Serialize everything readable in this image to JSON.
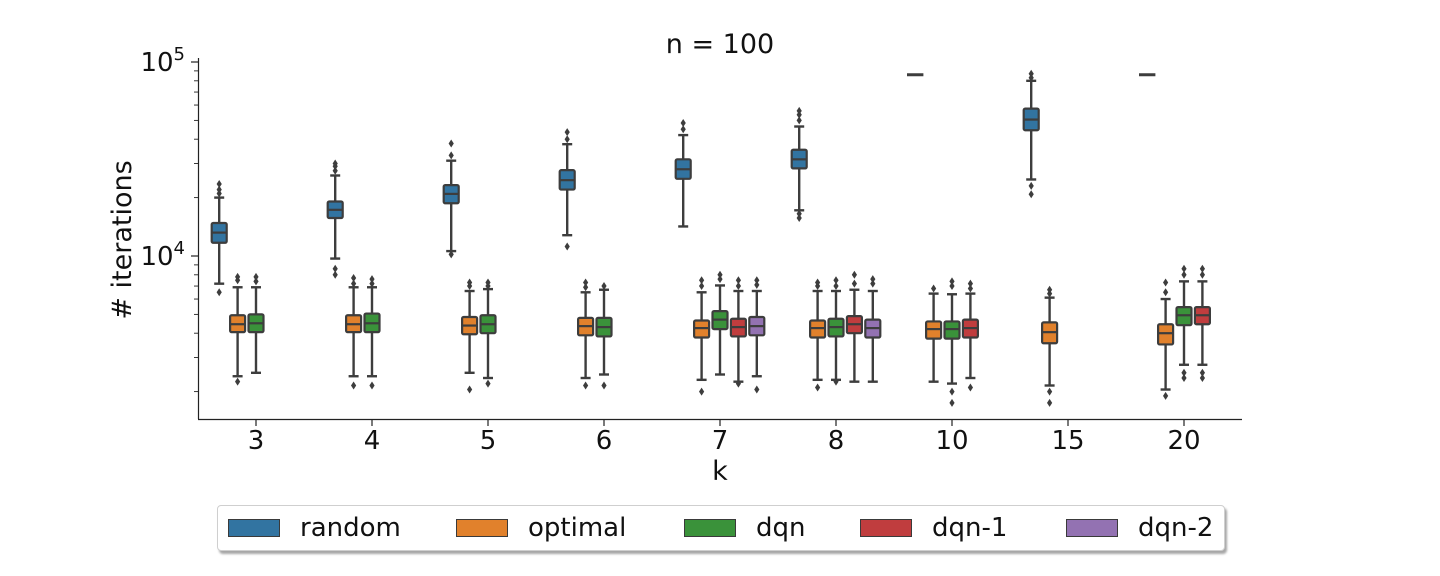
{
  "chart_data": {
    "type": "boxplot",
    "title": "n = 100",
    "xlabel": "k",
    "ylabel": "# iterations",
    "y_scale": "log",
    "y_ticks": [
      {
        "value": 10000,
        "label": "10^4"
      },
      {
        "value": 100000,
        "label": "10^5"
      }
    ],
    "categories": [
      "3",
      "4",
      "5",
      "6",
      "7",
      "8",
      "10",
      "15",
      "20"
    ],
    "legend_position": "bottom-center",
    "series": [
      {
        "name": "random",
        "color": "#3274a1",
        "boxes": {
          "3": {
            "q1": 11700,
            "median": 13200,
            "q3": 14800,
            "whislo": 7200,
            "whishi": 20000,
            "fliers": [
              6500,
              21000,
              22000,
              23500
            ]
          },
          "4": {
            "q1": 15700,
            "median": 17300,
            "q3": 19100,
            "whislo": 9700,
            "whishi": 26000,
            "fliers": [
              8000,
              8600,
              27500,
              29000,
              30000
            ]
          },
          "5": {
            "q1": 18700,
            "median": 20900,
            "q3": 23200,
            "whislo": 10600,
            "whishi": 31000,
            "fliers": [
              10200,
              33000,
              38000
            ]
          },
          "6": {
            "q1": 22000,
            "median": 24600,
            "q3": 27700,
            "whislo": 12800,
            "whishi": 37700,
            "fliers": [
              11200,
              40000,
              43500
            ]
          },
          "7": {
            "q1": 25000,
            "median": 28000,
            "q3": 31500,
            "whislo": 14200,
            "whishi": 42000,
            "fliers": [
              45000,
              48500
            ]
          },
          "8": {
            "q1": 28300,
            "median": 31500,
            "q3": 35300,
            "whislo": 17200,
            "whishi": 46500,
            "fliers": [
              15700,
              16500,
              50000,
              53500,
              56000
            ]
          },
          "10": {
            "q1": 86000,
            "median": 86000,
            "q3": 86000,
            "whislo": 86000,
            "whishi": 86000,
            "fliers": []
          },
          "15": {
            "q1": 44500,
            "median": 50500,
            "q3": 57500,
            "whislo": 24800,
            "whishi": 80000,
            "fliers": [
              20800,
              23000,
              83000,
              87000
            ]
          },
          "20": {
            "q1": 86000,
            "median": 86000,
            "q3": 86000,
            "whislo": 86000,
            "whishi": 86000,
            "fliers": []
          }
        }
      },
      {
        "name": "optimal",
        "color": "#e1812c",
        "boxes": {
          "3": {
            "q1": 4050,
            "median": 4450,
            "q3": 4950,
            "whislo": 2400,
            "whishi": 6900,
            "fliers": [
              2250,
              7500,
              7800
            ]
          },
          "4": {
            "q1": 4050,
            "median": 4450,
            "q3": 4950,
            "whislo": 2400,
            "whishi": 6900,
            "fliers": [
              2150,
              7200,
              7700
            ]
          },
          "5": {
            "q1": 3950,
            "median": 4380,
            "q3": 4850,
            "whislo": 2500,
            "whishi": 6600,
            "fliers": [
              2050,
              7000,
              7300
            ]
          },
          "6": {
            "q1": 3900,
            "median": 4350,
            "q3": 4800,
            "whislo": 2350,
            "whishi": 6500,
            "fliers": [
              2150,
              6900,
              7300
            ]
          },
          "7": {
            "q1": 3800,
            "median": 4250,
            "q3": 4650,
            "whislo": 2300,
            "whishi": 6500,
            "fliers": [
              2000,
              7000,
              7500
            ]
          },
          "8": {
            "q1": 3800,
            "median": 4250,
            "q3": 4650,
            "whislo": 2300,
            "whishi": 6600,
            "fliers": [
              2100,
              7000,
              7300
            ]
          },
          "10": {
            "q1": 3750,
            "median": 4200,
            "q3": 4600,
            "whislo": 2250,
            "whishi": 6400,
            "fliers": [
              6800
            ]
          },
          "15": {
            "q1": 3550,
            "median": 4050,
            "q3": 4550,
            "whislo": 2150,
            "whishi": 6100,
            "fliers": [
              1750,
              2000,
              6400,
              6700
            ]
          },
          "20": {
            "q1": 3500,
            "median": 4000,
            "q3": 4450,
            "whislo": 2050,
            "whishi": 6000,
            "fliers": [
              1900,
              6500,
              7300
            ]
          }
        }
      },
      {
        "name": "dqn",
        "color": "#3a923a",
        "boxes": {
          "3": {
            "q1": 4050,
            "median": 4500,
            "q3": 5000,
            "whislo": 2500,
            "whishi": 6900,
            "fliers": [
              7400,
              7800
            ]
          },
          "4": {
            "q1": 4050,
            "median": 4500,
            "q3": 5050,
            "whislo": 2400,
            "whishi": 6900,
            "fliers": [
              2150,
              7200,
              7600
            ]
          },
          "5": {
            "q1": 4000,
            "median": 4450,
            "q3": 4950,
            "whislo": 2350,
            "whishi": 6750,
            "fliers": [
              2200,
              7000,
              7300
            ]
          },
          "6": {
            "q1": 3850,
            "median": 4300,
            "q3": 4800,
            "whislo": 2450,
            "whishi": 6700,
            "fliers": [
              2150,
              7000
            ]
          },
          "7": {
            "q1": 4200,
            "median": 4700,
            "q3": 5200,
            "whislo": 2450,
            "whishi": 7050,
            "fliers": [
              7600,
              8000
            ]
          },
          "8": {
            "q1": 3850,
            "median": 4300,
            "q3": 4750,
            "whislo": 2300,
            "whishi": 6600,
            "fliers": [
              2250,
              7000,
              7500
            ]
          },
          "10": {
            "q1": 3750,
            "median": 4200,
            "q3": 4600,
            "whislo": 2200,
            "whishi": 6350,
            "fliers": [
              1750,
              2000,
              7000,
              7400
            ]
          },
          "20": {
            "q1": 4400,
            "median": 4950,
            "q3": 5450,
            "whislo": 2750,
            "whishi": 7400,
            "fliers": [
              2350,
              2500,
              8000,
              8600
            ]
          }
        }
      },
      {
        "name": "dqn-1",
        "color": "#c03d3e",
        "boxes": {
          "7": {
            "q1": 3850,
            "median": 4300,
            "q3": 4750,
            "whislo": 2250,
            "whishi": 6600,
            "fliers": [
              2200,
              7000,
              7500
            ]
          },
          "8": {
            "q1": 4000,
            "median": 4450,
            "q3": 4900,
            "whislo": 2250,
            "whishi": 6700,
            "fliers": [
              7200,
              8000
            ]
          },
          "10": {
            "q1": 3800,
            "median": 4250,
            "q3": 4700,
            "whislo": 2350,
            "whishi": 6400,
            "fliers": [
              2100,
              6800,
              7200
            ]
          },
          "20": {
            "q1": 4450,
            "median": 4950,
            "q3": 5450,
            "whislo": 2750,
            "whishi": 7400,
            "fliers": [
              2350,
              2500,
              8000,
              8600
            ]
          }
        }
      },
      {
        "name": "dqn-2",
        "color": "#9372b2",
        "boxes": {
          "7": {
            "q1": 3900,
            "median": 4350,
            "q3": 4850,
            "whislo": 2400,
            "whishi": 6600,
            "fliers": [
              2050,
              7100,
              7500
            ]
          },
          "8": {
            "q1": 3800,
            "median": 4250,
            "q3": 4700,
            "whislo": 2250,
            "whishi": 6600,
            "fliers": [
              7200,
              7600
            ]
          }
        }
      }
    ]
  }
}
